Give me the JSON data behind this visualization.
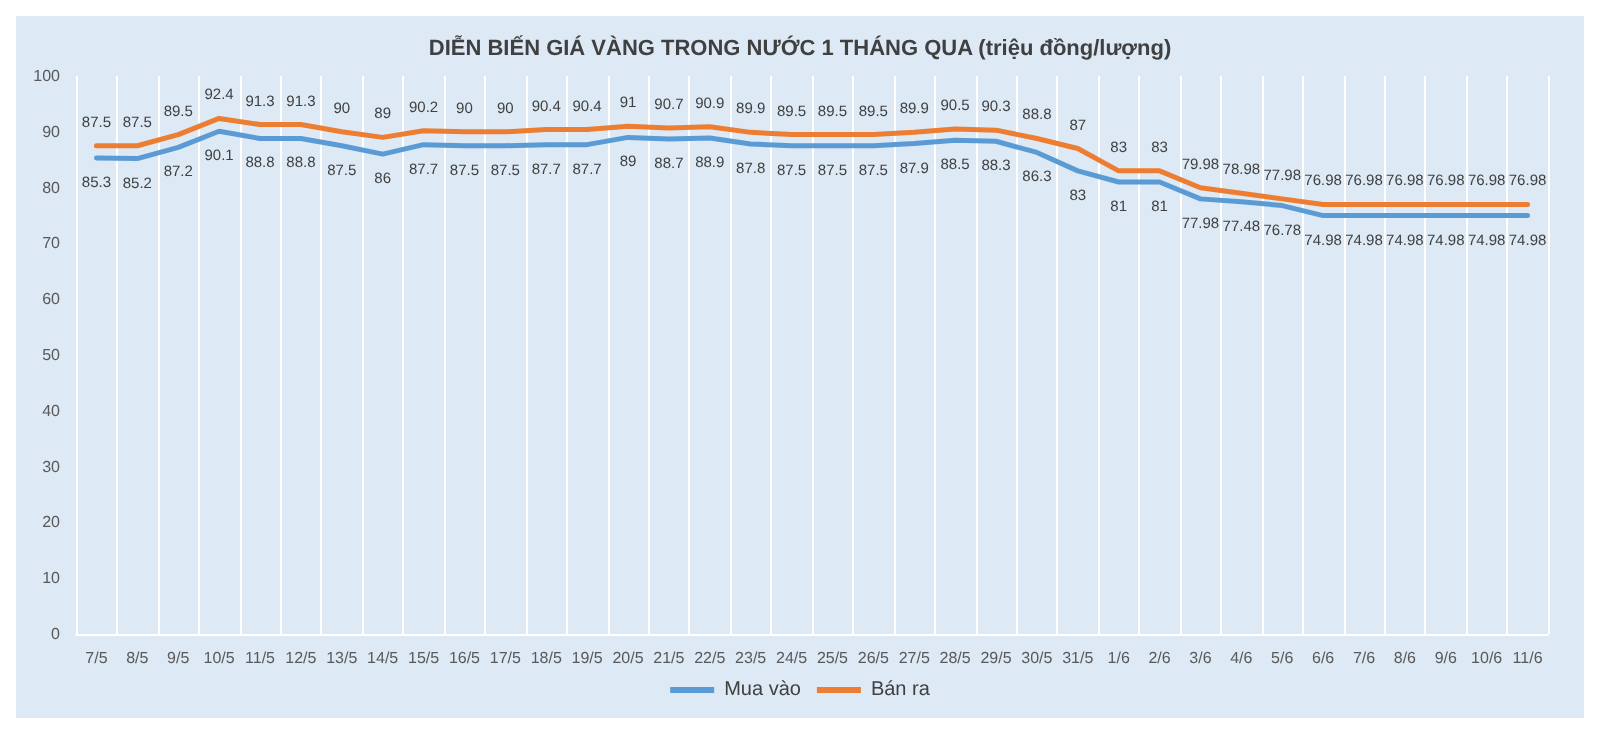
{
  "chart_data": {
    "type": "line",
    "title": "DIỄN BIẾN GIÁ VÀNG TRONG NƯỚC 1 THÁNG QUA (triệu đồng/lượng)",
    "categories": [
      "7/5",
      "8/5",
      "9/5",
      "10/5",
      "11/5",
      "12/5",
      "13/5",
      "14/5",
      "15/5",
      "16/5",
      "17/5",
      "18/5",
      "19/5",
      "20/5",
      "21/5",
      "22/5",
      "23/5",
      "24/5",
      "25/5",
      "26/5",
      "27/5",
      "28/5",
      "29/5",
      "30/5",
      "31/5",
      "1/6",
      "2/6",
      "3/6",
      "4/6",
      "5/6",
      "6/6",
      "7/6",
      "8/6",
      "9/6",
      "10/6",
      "11/6"
    ],
    "series": [
      {
        "name": "Mua vào",
        "color": "#5b9bd5",
        "values": [
          85.3,
          85.2,
          87.2,
          90.1,
          88.8,
          88.8,
          87.5,
          86,
          87.7,
          87.5,
          87.5,
          87.7,
          87.7,
          89,
          88.7,
          88.9,
          87.8,
          87.5,
          87.5,
          87.5,
          87.9,
          88.5,
          88.3,
          86.3,
          83,
          81,
          81,
          77.98,
          77.48,
          76.78,
          74.98,
          74.98,
          74.98,
          74.98,
          74.98,
          74.98
        ]
      },
      {
        "name": "Bán ra",
        "color": "#ed7d31",
        "values": [
          87.5,
          87.5,
          89.5,
          92.4,
          91.3,
          91.3,
          90,
          89,
          90.2,
          90,
          90,
          90.4,
          90.4,
          91,
          90.7,
          90.9,
          89.9,
          89.5,
          89.5,
          89.5,
          89.9,
          90.5,
          90.3,
          88.8,
          87,
          83,
          83,
          79.98,
          78.98,
          77.98,
          76.98,
          76.98,
          76.98,
          76.98,
          76.98,
          76.98
        ]
      }
    ],
    "ylim": [
      0,
      100
    ],
    "yticks": [
      0,
      10,
      20,
      30,
      40,
      50,
      60,
      70,
      80,
      90,
      100
    ],
    "grid": "x",
    "legend": "bottom",
    "marker": "none",
    "line_style": "solid",
    "data_labels": true
  }
}
